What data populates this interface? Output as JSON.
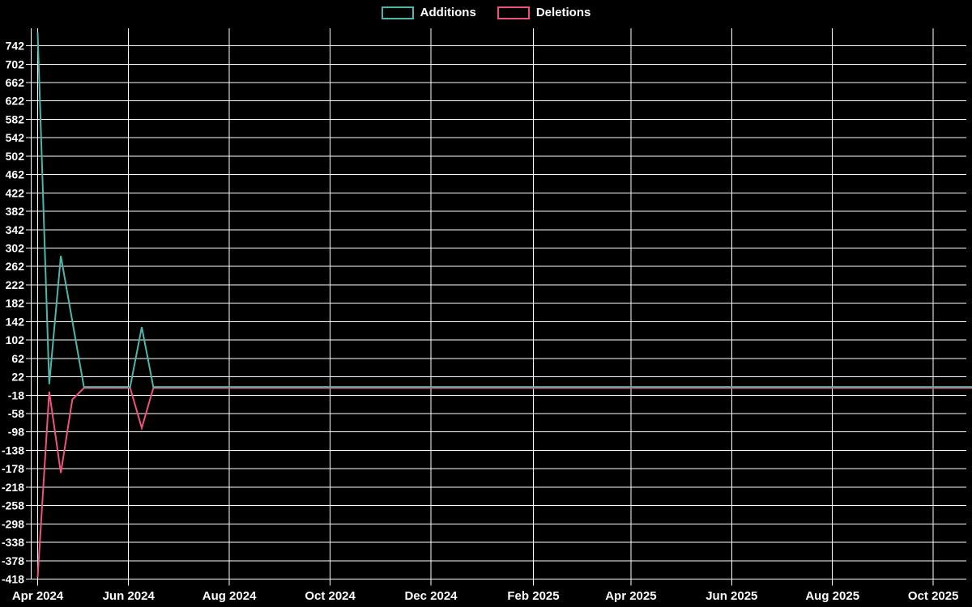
{
  "chart_data": {
    "type": "line",
    "title": "",
    "legend_position": "top-center",
    "grid": "on",
    "background": "#000000",
    "grid_color": "#ffffff",
    "text_color": "#ffffff",
    "interval": "weekly",
    "range": {
      "start": "2024-04-07",
      "end": "2025-10-26"
    },
    "baseline_value": 0,
    "series": [
      {
        "name": "Additions",
        "color": "#4db6ac",
        "points": [
          [
            "2024-04-07",
            771
          ],
          [
            "2024-04-14",
            6
          ],
          [
            "2024-04-21",
            285
          ],
          [
            "2024-04-28",
            143
          ],
          [
            "2024-06-09",
            130
          ]
        ]
      },
      {
        "name": "Deletions",
        "color": "#f0527b",
        "points": [
          [
            "2024-04-07",
            -412
          ],
          [
            "2024-04-14",
            -8
          ],
          [
            "2024-04-21",
            -185
          ],
          [
            "2024-04-28",
            -25
          ],
          [
            "2024-06-09",
            -87
          ]
        ]
      }
    ],
    "x_axis": {
      "ticks": [
        {
          "label": "Apr 2024",
          "date": "2024-04-07"
        },
        {
          "label": "Jun 2024",
          "date": "2024-06-01"
        },
        {
          "label": "Aug 2024",
          "date": "2024-08-01"
        },
        {
          "label": "Oct 2024",
          "date": "2024-10-01"
        },
        {
          "label": "Dec 2024",
          "date": "2024-12-01"
        },
        {
          "label": "Feb 2025",
          "date": "2025-02-01"
        },
        {
          "label": "Apr 2025",
          "date": "2025-04-01"
        },
        {
          "label": "Jun 2025",
          "date": "2025-06-01"
        },
        {
          "label": "Aug 2025",
          "date": "2025-08-01"
        },
        {
          "label": "Oct 2025",
          "date": "2025-10-01"
        }
      ]
    },
    "y_axis": {
      "ticks": [
        742,
        702,
        662,
        622,
        582,
        542,
        502,
        462,
        422,
        382,
        342,
        302,
        262,
        222,
        182,
        142,
        102,
        62,
        22,
        -18,
        -58,
        -98,
        -138,
        -178,
        -218,
        -258,
        -298,
        -338,
        -378,
        -418
      ],
      "lim": [
        -418,
        780
      ]
    }
  }
}
